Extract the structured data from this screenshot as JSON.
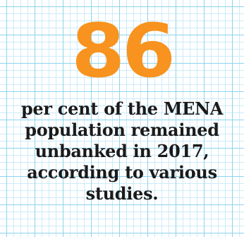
{
  "stat": {
    "value": "86",
    "caption_lines": [
      "per cent of the MENA",
      "population remained",
      "unbanked in 2017,",
      "according to various",
      "studies."
    ]
  },
  "colors": {
    "number": "#f7931e",
    "text": "#1a1a1a",
    "grid_major": "#8ed3ef",
    "grid_minor": "#cdebf8",
    "background": "#ffffff"
  }
}
